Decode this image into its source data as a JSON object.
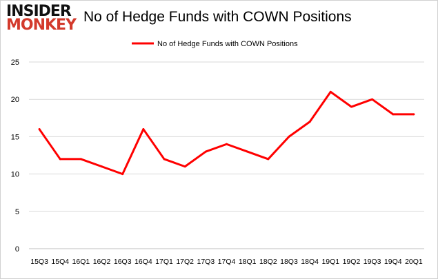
{
  "logo": {
    "line1": "INSIDER",
    "line2": "MONKEY"
  },
  "chart_data": {
    "type": "line",
    "title": "No of Hedge Funds with COWN Positions",
    "categories": [
      "15Q3",
      "15Q4",
      "16Q1",
      "16Q2",
      "16Q3",
      "16Q4",
      "17Q1",
      "17Q2",
      "17Q3",
      "17Q4",
      "18Q1",
      "18Q2",
      "18Q3",
      "18Q4",
      "19Q1",
      "19Q2",
      "19Q3",
      "19Q4",
      "20Q1"
    ],
    "series": [
      {
        "name": "No of Hedge Funds with COWN Positions",
        "values": [
          16,
          12,
          12,
          11,
          10,
          16,
          12,
          11,
          13,
          14,
          13,
          12,
          15,
          17,
          21,
          19,
          20,
          18,
          18
        ],
        "color": "#ff0000"
      }
    ],
    "ylim": [
      0,
      25
    ],
    "yticks": [
      0,
      5,
      10,
      15,
      20,
      25
    ],
    "grid": true,
    "legend": "top-center"
  }
}
